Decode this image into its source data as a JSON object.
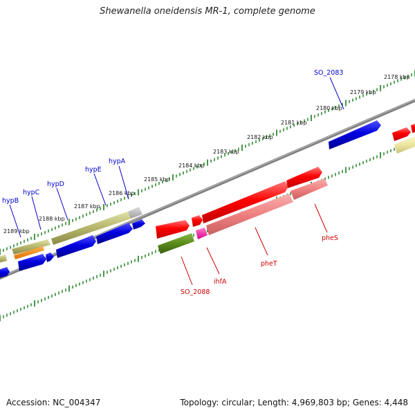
{
  "title": "Shewanella oneidensis MR-1, complete genome",
  "footer": {
    "accession": "Accession: NC_004347",
    "summary": "Topology: circular; Length: 4,969,803 bp; Genes: 4,448"
  },
  "colors": {
    "forward_gene": "#ff0000",
    "forward_gene_light": "#f08080",
    "reverse_gene": "#0000e0",
    "olive_gene": "#b5b56a",
    "green_gene": "#5a8a1a",
    "magenta_gene": "#ff22aa",
    "orange_gene": "#ff8c00",
    "tick_green": "#1a7a1a",
    "backbone": "#808080",
    "forward_label": "#cc0000",
    "reverse_label": "#0000cc"
  },
  "scale_ticks": [
    {
      "label": "2178 kbp"
    },
    {
      "label": "2179 kbp"
    },
    {
      "label": "2180 kbp"
    },
    {
      "label": "2181 kbp"
    },
    {
      "label": "2182 kbp"
    },
    {
      "label": "2183 kbp"
    },
    {
      "label": "2184 kbp"
    },
    {
      "label": "2185 kbp"
    },
    {
      "label": "2186 kbp"
    },
    {
      "label": "2187 kbp"
    },
    {
      "label": "2188 kbp"
    },
    {
      "label": "2189 kbp"
    }
  ],
  "gene_labels": {
    "reverse": [
      {
        "name": "SO_2083"
      },
      {
        "name": "hypA"
      },
      {
        "name": "hypE"
      },
      {
        "name": "hypD"
      },
      {
        "name": "hypC"
      },
      {
        "name": "hypB"
      }
    ],
    "forward": [
      {
        "name": "pheS"
      },
      {
        "name": "pheT"
      },
      {
        "name": "ihfA"
      },
      {
        "name": "SO_2088"
      }
    ]
  }
}
